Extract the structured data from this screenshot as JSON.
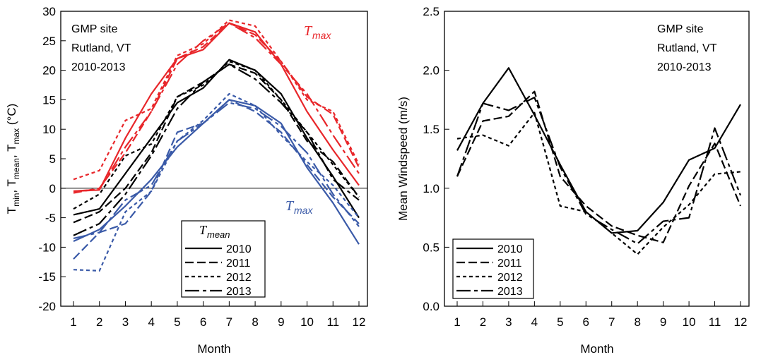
{
  "chart_data": [
    {
      "type": "line",
      "x": [
        1,
        2,
        3,
        4,
        5,
        6,
        7,
        8,
        9,
        10,
        11,
        12
      ],
      "xlabel": "Month",
      "ylim": [
        -20,
        30
      ],
      "yticks": [
        "30",
        "25",
        "20",
        "15",
        "10",
        "5",
        "0",
        "-5",
        "-10",
        "-15",
        "-20"
      ],
      "xticks": [
        "1",
        "2",
        "3",
        "4",
        "5",
        "6",
        "7",
        "8",
        "9",
        "10",
        "11",
        "12"
      ],
      "annotation": [
        "GMP site",
        "Rutland, VT",
        "2010-2013"
      ],
      "label_tmax_red": "max",
      "label_tmax_blue": "max",
      "legend": {
        "title": "mean",
        "entries": [
          "2010",
          "2011",
          "2012",
          "2013"
        ],
        "position": "bottom-center"
      },
      "zero_line": true,
      "groups": [
        {
          "group": "max",
          "color": "#e8262a",
          "series": [
            {
              "name": "2010",
              "values": [
                -0.5,
                -0.3,
                8.5,
                16.0,
                22.0,
                23.5,
                28.0,
                26.5,
                21.0,
                13.0,
                6.5,
                0.5
              ]
            },
            {
              "name": "2011",
              "values": [
                -0.8,
                0.0,
                6.0,
                13.0,
                22.0,
                24.0,
                28.0,
                26.0,
                21.5,
                15.5,
                12.5,
                3.5
              ]
            },
            {
              "name": "2012",
              "values": [
                1.5,
                3.0,
                11.5,
                13.5,
                22.5,
                24.5,
                28.5,
                27.5,
                21.5,
                15.0,
                13.0,
                4.0
              ]
            },
            {
              "name": "2013",
              "values": [
                -0.5,
                -0.2,
                7.0,
                13.0,
                21.0,
                25.0,
                28.0,
                25.5,
                21.0,
                16.0,
                9.0,
                2.5
              ]
            }
          ]
        },
        {
          "group": "mean",
          "color": "#000000",
          "series": [
            {
              "name": "2010",
              "values": [
                -4.5,
                -3.5,
                2.5,
                8.5,
                14.5,
                17.0,
                21.8,
                20.0,
                16.0,
                8.5,
                2.0,
                -5.0
              ]
            },
            {
              "name": "2011",
              "values": [
                -5.8,
                -4.0,
                0.0,
                6.0,
                15.5,
                18.0,
                21.0,
                19.5,
                15.0,
                8.0,
                4.5,
                -1.5
              ]
            },
            {
              "name": "2012",
              "values": [
                -3.5,
                -1.0,
                5.5,
                7.5,
                15.5,
                17.5,
                21.5,
                20.0,
                15.0,
                9.5,
                4.0,
                -1.5
              ]
            },
            {
              "name": "2013",
              "values": [
                -8.0,
                -6.0,
                -1.0,
                5.5,
                13.5,
                18.0,
                21.0,
                18.5,
                14.5,
                9.5,
                1.5,
                -2.0
              ]
            }
          ]
        },
        {
          "group": "min",
          "color": "#3a5aa8",
          "series": [
            {
              "name": "2010",
              "values": [
                -9.0,
                -7.0,
                -3.0,
                1.5,
                7.0,
                11.0,
                15.0,
                14.0,
                11.0,
                3.5,
                -2.5,
                -9.5
              ]
            },
            {
              "name": "2011",
              "values": [
                -12.0,
                -7.5,
                -6.0,
                -0.5,
                9.5,
                11.0,
                15.0,
                13.0,
                9.5,
                4.0,
                -1.5,
                -6.0
              ]
            },
            {
              "name": "2012",
              "values": [
                -13.8,
                -14.0,
                -4.0,
                -0.5,
                8.0,
                11.5,
                16.0,
                14.0,
                9.0,
                4.5,
                0.5,
                -5.0
              ]
            },
            {
              "name": "2013",
              "values": [
                -8.5,
                -7.5,
                -2.0,
                0.5,
                8.0,
                11.0,
                14.5,
                13.5,
                10.5,
                6.0,
                -1.0,
                -6.5
              ]
            }
          ]
        }
      ]
    },
    {
      "type": "line",
      "x": [
        1,
        2,
        3,
        4,
        5,
        6,
        7,
        8,
        9,
        10,
        11,
        12
      ],
      "xlabel": "Month",
      "ylabel": "Mean Windspeed (m/s)",
      "ylim": [
        0,
        2.5
      ],
      "yticks": [
        "2.5",
        "2.0",
        "1.5",
        "1.0",
        "0.5",
        "0.0"
      ],
      "xticks": [
        "1",
        "2",
        "3",
        "4",
        "5",
        "6",
        "7",
        "8",
        "9",
        "10",
        "11",
        "12"
      ],
      "annotation": [
        "GMP site",
        "Rutland, VT",
        "2010-2013"
      ],
      "legend": {
        "entries": [
          "2010",
          "2011",
          "2012",
          "2013"
        ],
        "position": "bottom-left"
      },
      "series": [
        {
          "name": "2010",
          "values": [
            1.32,
            1.72,
            2.02,
            1.62,
            1.2,
            0.8,
            0.62,
            0.64,
            0.88,
            1.24,
            1.34,
            1.71
          ]
        },
        {
          "name": "2011",
          "values": [
            1.1,
            1.57,
            1.61,
            1.82,
            1.1,
            0.85,
            0.68,
            0.6,
            0.54,
            1.02,
            1.38,
            0.85
          ]
        },
        {
          "name": "2012",
          "values": [
            1.42,
            1.45,
            1.36,
            1.64,
            0.85,
            0.8,
            0.62,
            0.44,
            0.67,
            0.86,
            1.12,
            1.14
          ]
        },
        {
          "name": "2013",
          "values": [
            1.1,
            1.72,
            1.66,
            1.77,
            1.18,
            0.78,
            0.65,
            0.53,
            0.72,
            0.75,
            1.51,
            0.94
          ]
        }
      ]
    }
  ]
}
